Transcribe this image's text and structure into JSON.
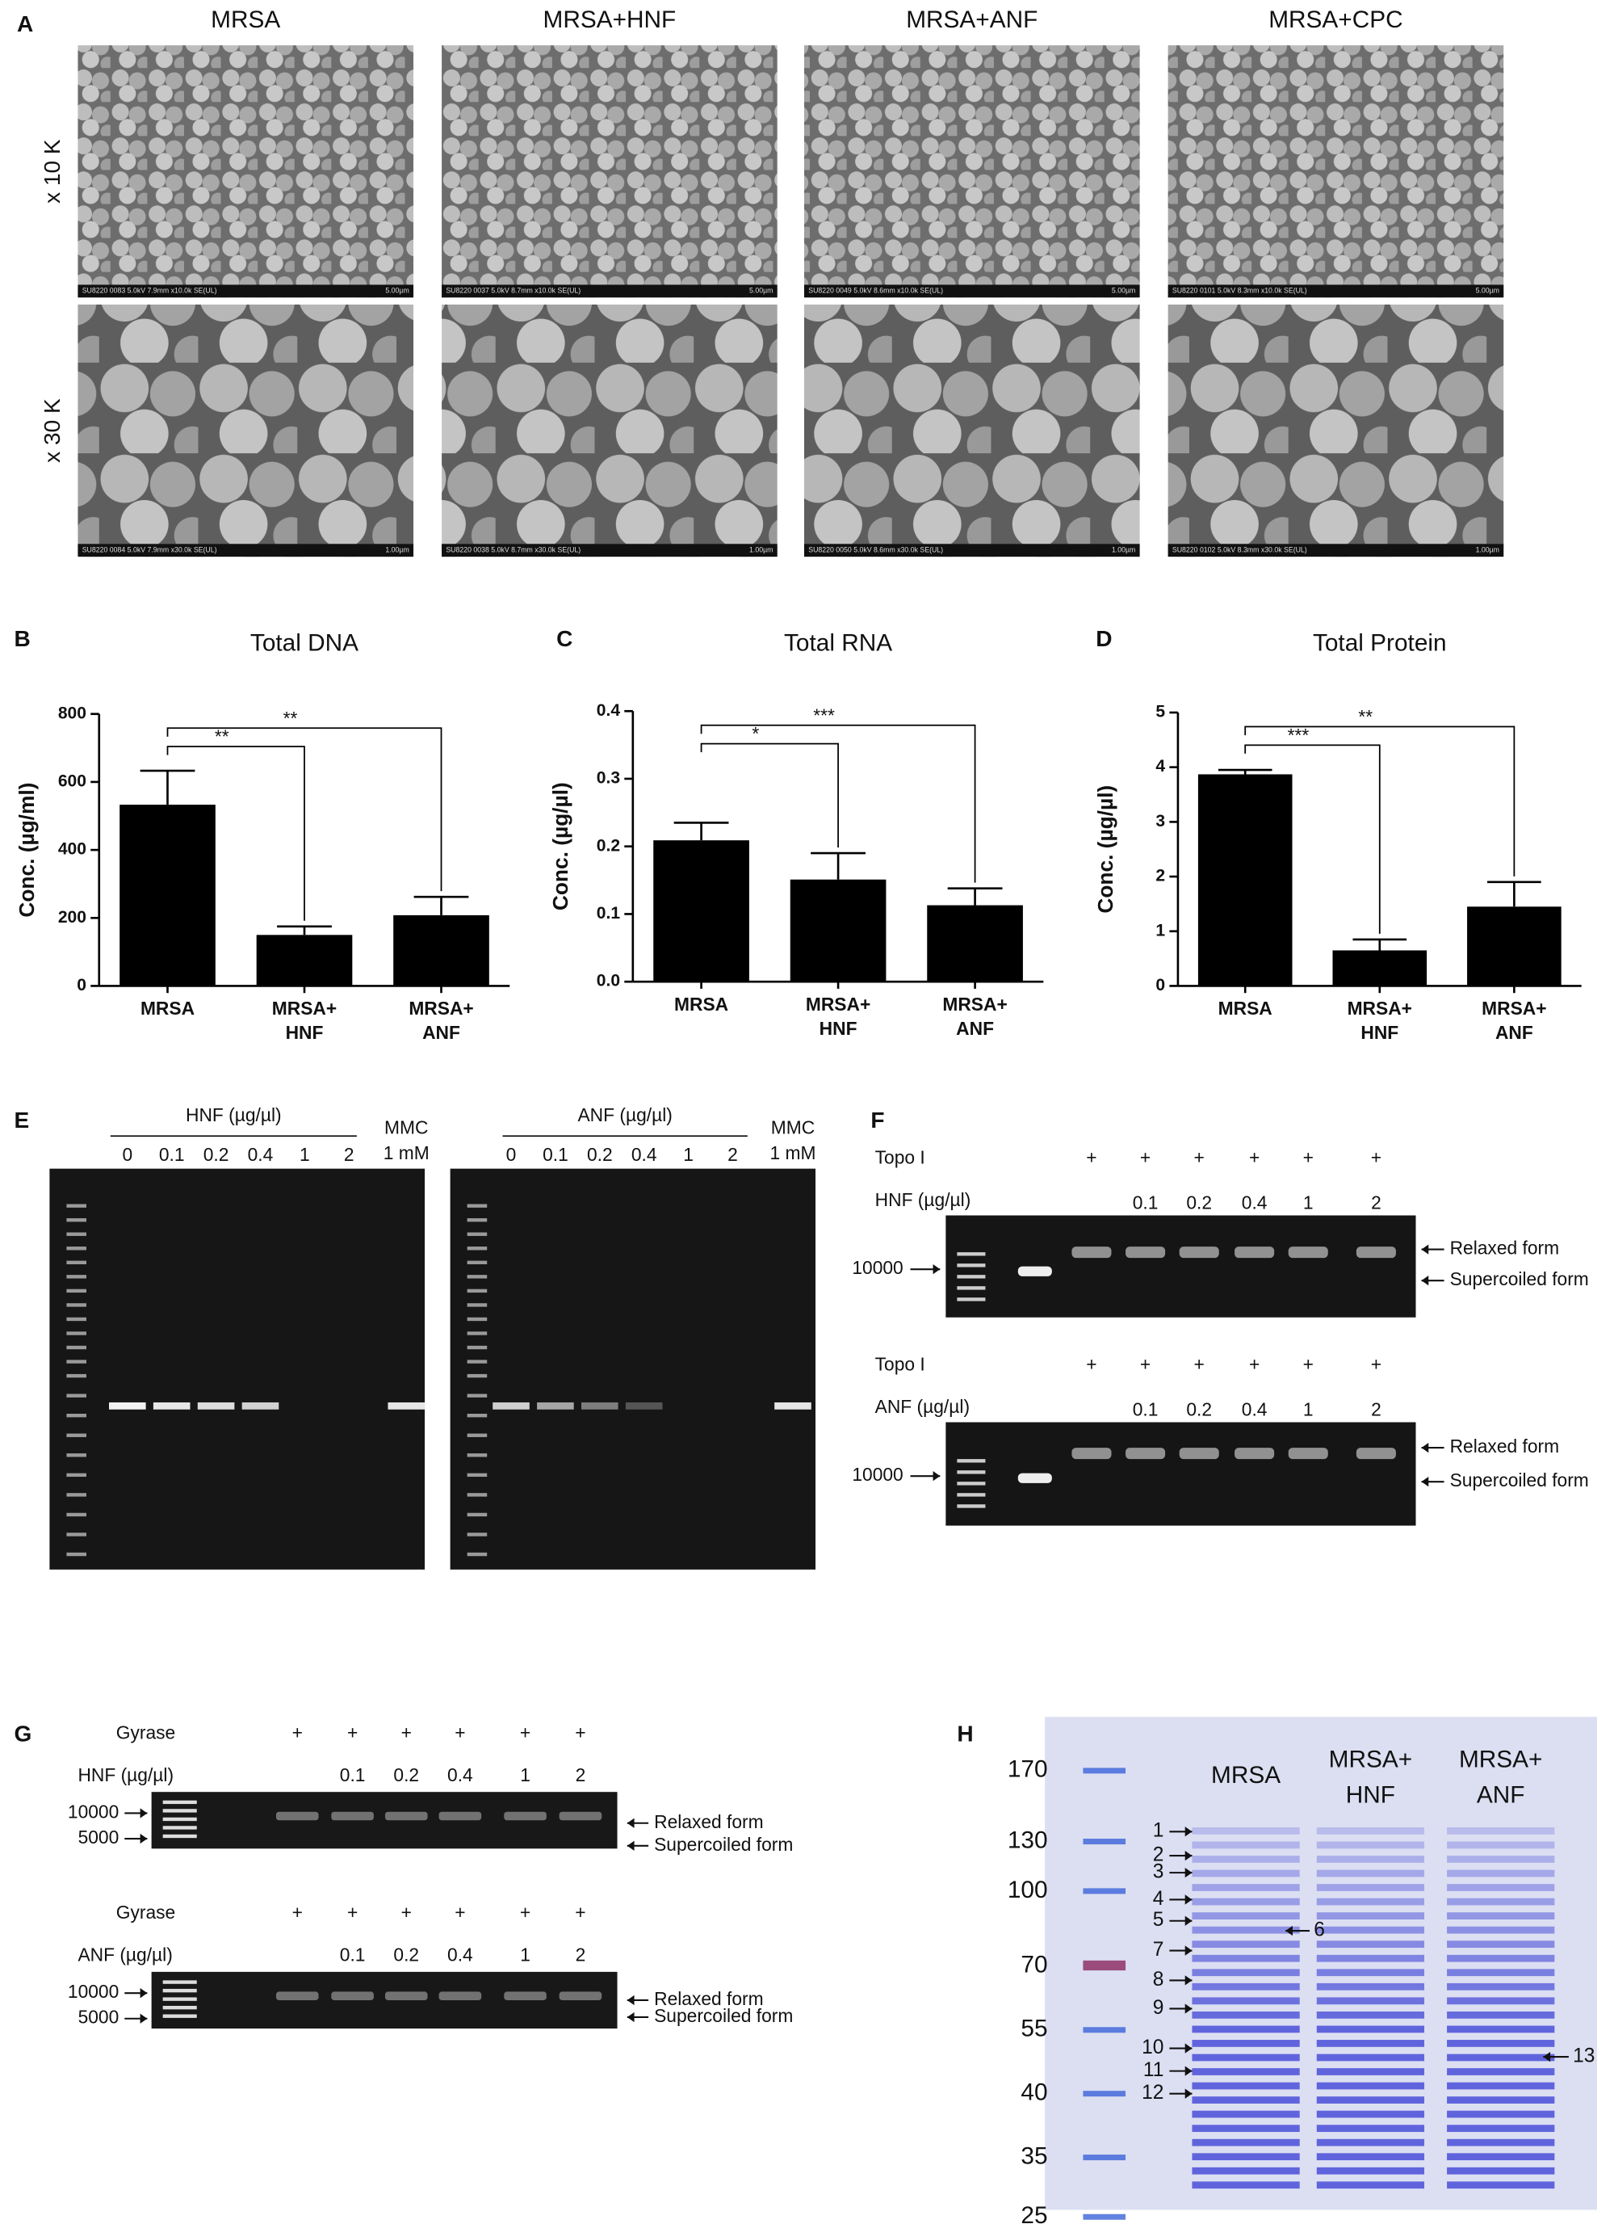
{
  "panel_labels": [
    "A",
    "B",
    "C",
    "D",
    "E",
    "F",
    "G",
    "H"
  ],
  "sem": {
    "columns": [
      "MRSA",
      "MRSA+HNF",
      "MRSA+ANF",
      "MRSA+CPC"
    ],
    "rows": [
      "x 10 K",
      "x 30 K"
    ],
    "captions": [
      [
        "SU8220 0083 5.0kV 7.9mm x10.0k SE(UL)",
        "SU8220 0037 5.0kV 8.7mm x10.0k SE(UL)",
        "SU8220 0049 5.0kV 8.6mm x10.0k SE(UL)",
        "SU8220 0101 5.0kV 8.3mm x10.0k SE(UL)"
      ],
      [
        "SU8220 0084 5.0kV 7.9mm x30.0k SE(UL)",
        "SU8220 0038 5.0kV 8.7mm x30.0k SE(UL)",
        "SU8220 0050 5.0kV 8.6mm x30.0k SE(UL)",
        "SU8220 0102 5.0kV 8.3mm x30.0k SE(UL)"
      ]
    ],
    "scales": [
      "5.00µm",
      "1.00µm"
    ]
  },
  "chart_data": [
    {
      "type": "bar",
      "title": "Total DNA",
      "y_label": "Conc. (µg/ml)",
      "color": "#000000",
      "categories": [
        "MRSA",
        "MRSA+\nHNF",
        "MRSA+\nANF"
      ],
      "values": [
        533,
        150,
        208
      ],
      "errors": [
        100,
        25,
        54
      ],
      "ylim": [
        0,
        800
      ],
      "yticks": [
        0,
        200,
        400,
        600,
        800
      ],
      "comparisons": [
        {
          "groups": [
            "MRSA",
            "MRSA+\nHNF"
          ],
          "label": "**"
        },
        {
          "groups": [
            "MRSA",
            "MRSA+\nANF"
          ],
          "label": "**"
        }
      ]
    },
    {
      "type": "bar",
      "title": "Total RNA",
      "y_label": "Conc. (µg/µl)",
      "color": "#000000",
      "categories": [
        "MRSA",
        "MRSA+\nHNF",
        "MRSA+\nANF"
      ],
      "values": [
        0.209,
        0.151,
        0.113
      ],
      "errors": [
        0.026,
        0.039,
        0.025
      ],
      "ylim": [
        0,
        0.4
      ],
      "yticks": [
        {
          "value": 0,
          "label": "0.0"
        },
        0.1,
        0.2,
        0.3,
        0.4
      ],
      "comparisons": [
        {
          "groups": [
            "MRSA",
            "MRSA+\nHNF"
          ],
          "label": "*"
        },
        {
          "groups": [
            "MRSA",
            "MRSA+\nANF"
          ],
          "label": "***"
        }
      ]
    },
    {
      "type": "bar",
      "title": "Total Protein",
      "y_label": "Conc. (µg/µl)",
      "color": "#000000",
      "categories": [
        "MRSA",
        "MRSA+\nHNF",
        "MRSA+\nANF"
      ],
      "values": [
        3.87,
        0.65,
        1.45
      ],
      "errors": [
        0.08,
        0.2,
        0.45
      ],
      "ylim": [
        0,
        5
      ],
      "yticks": [
        0,
        1,
        2,
        3,
        4,
        5
      ],
      "comparisons": [
        {
          "groups": [
            "MRSA",
            "MRSA+\nHNF"
          ],
          "label": "***"
        },
        {
          "groups": [
            "MRSA",
            "MRSA+\nANF"
          ],
          "label": "**"
        }
      ]
    }
  ],
  "gel_e": [
    {
      "label": "HNF (µg/µl)",
      "lanes": [
        "0",
        "0.1",
        "0.2",
        "0.4",
        "1",
        "2"
      ],
      "control": [
        "MMC",
        "1 mM"
      ]
    },
    {
      "label": "ANF (µg/µl)",
      "lanes": [
        "0",
        "0.1",
        "0.2",
        "0.4",
        "1",
        "2"
      ],
      "control": [
        "MMC",
        "1 mM"
      ]
    }
  ],
  "gel_f": {
    "enzyme": "Topo I",
    "plus": "+",
    "marker": "10000",
    "forms": [
      "Relaxed form",
      "Supercoiled form"
    ],
    "rows": [
      {
        "label": "HNF (µg/µl)",
        "lanes": [
          "0.1",
          "0.2",
          "0.4",
          "1",
          "2"
        ]
      },
      {
        "label": "ANF (µg/µl)",
        "lanes": [
          "0.1",
          "0.2",
          "0.4",
          "1",
          "2"
        ]
      }
    ]
  },
  "gel_g": {
    "enzyme": "Gyrase",
    "plus": "+",
    "markers": [
      "10000",
      "5000"
    ],
    "forms": [
      "Relaxed form",
      "Supercoiled form"
    ],
    "rows": [
      {
        "label": "HNF (µg/µl)",
        "lanes": [
          "0.1",
          "0.2",
          "0.4",
          "1",
          "2"
        ]
      },
      {
        "label": "ANF (µg/µl)",
        "lanes": [
          "0.1",
          "0.2",
          "0.4",
          "1",
          "2"
        ]
      }
    ]
  },
  "gel_h": {
    "lanes": [
      "MRSA",
      "MRSA+\nHNF",
      "MRSA+\nANF"
    ],
    "markers": [
      "170",
      "130",
      "100",
      "70",
      "55",
      "40",
      "35",
      "25"
    ],
    "bands": [
      "1",
      "2",
      "3",
      "4",
      "5",
      "6",
      "7",
      "8",
      "9",
      "10",
      "11",
      "12",
      "13"
    ]
  }
}
